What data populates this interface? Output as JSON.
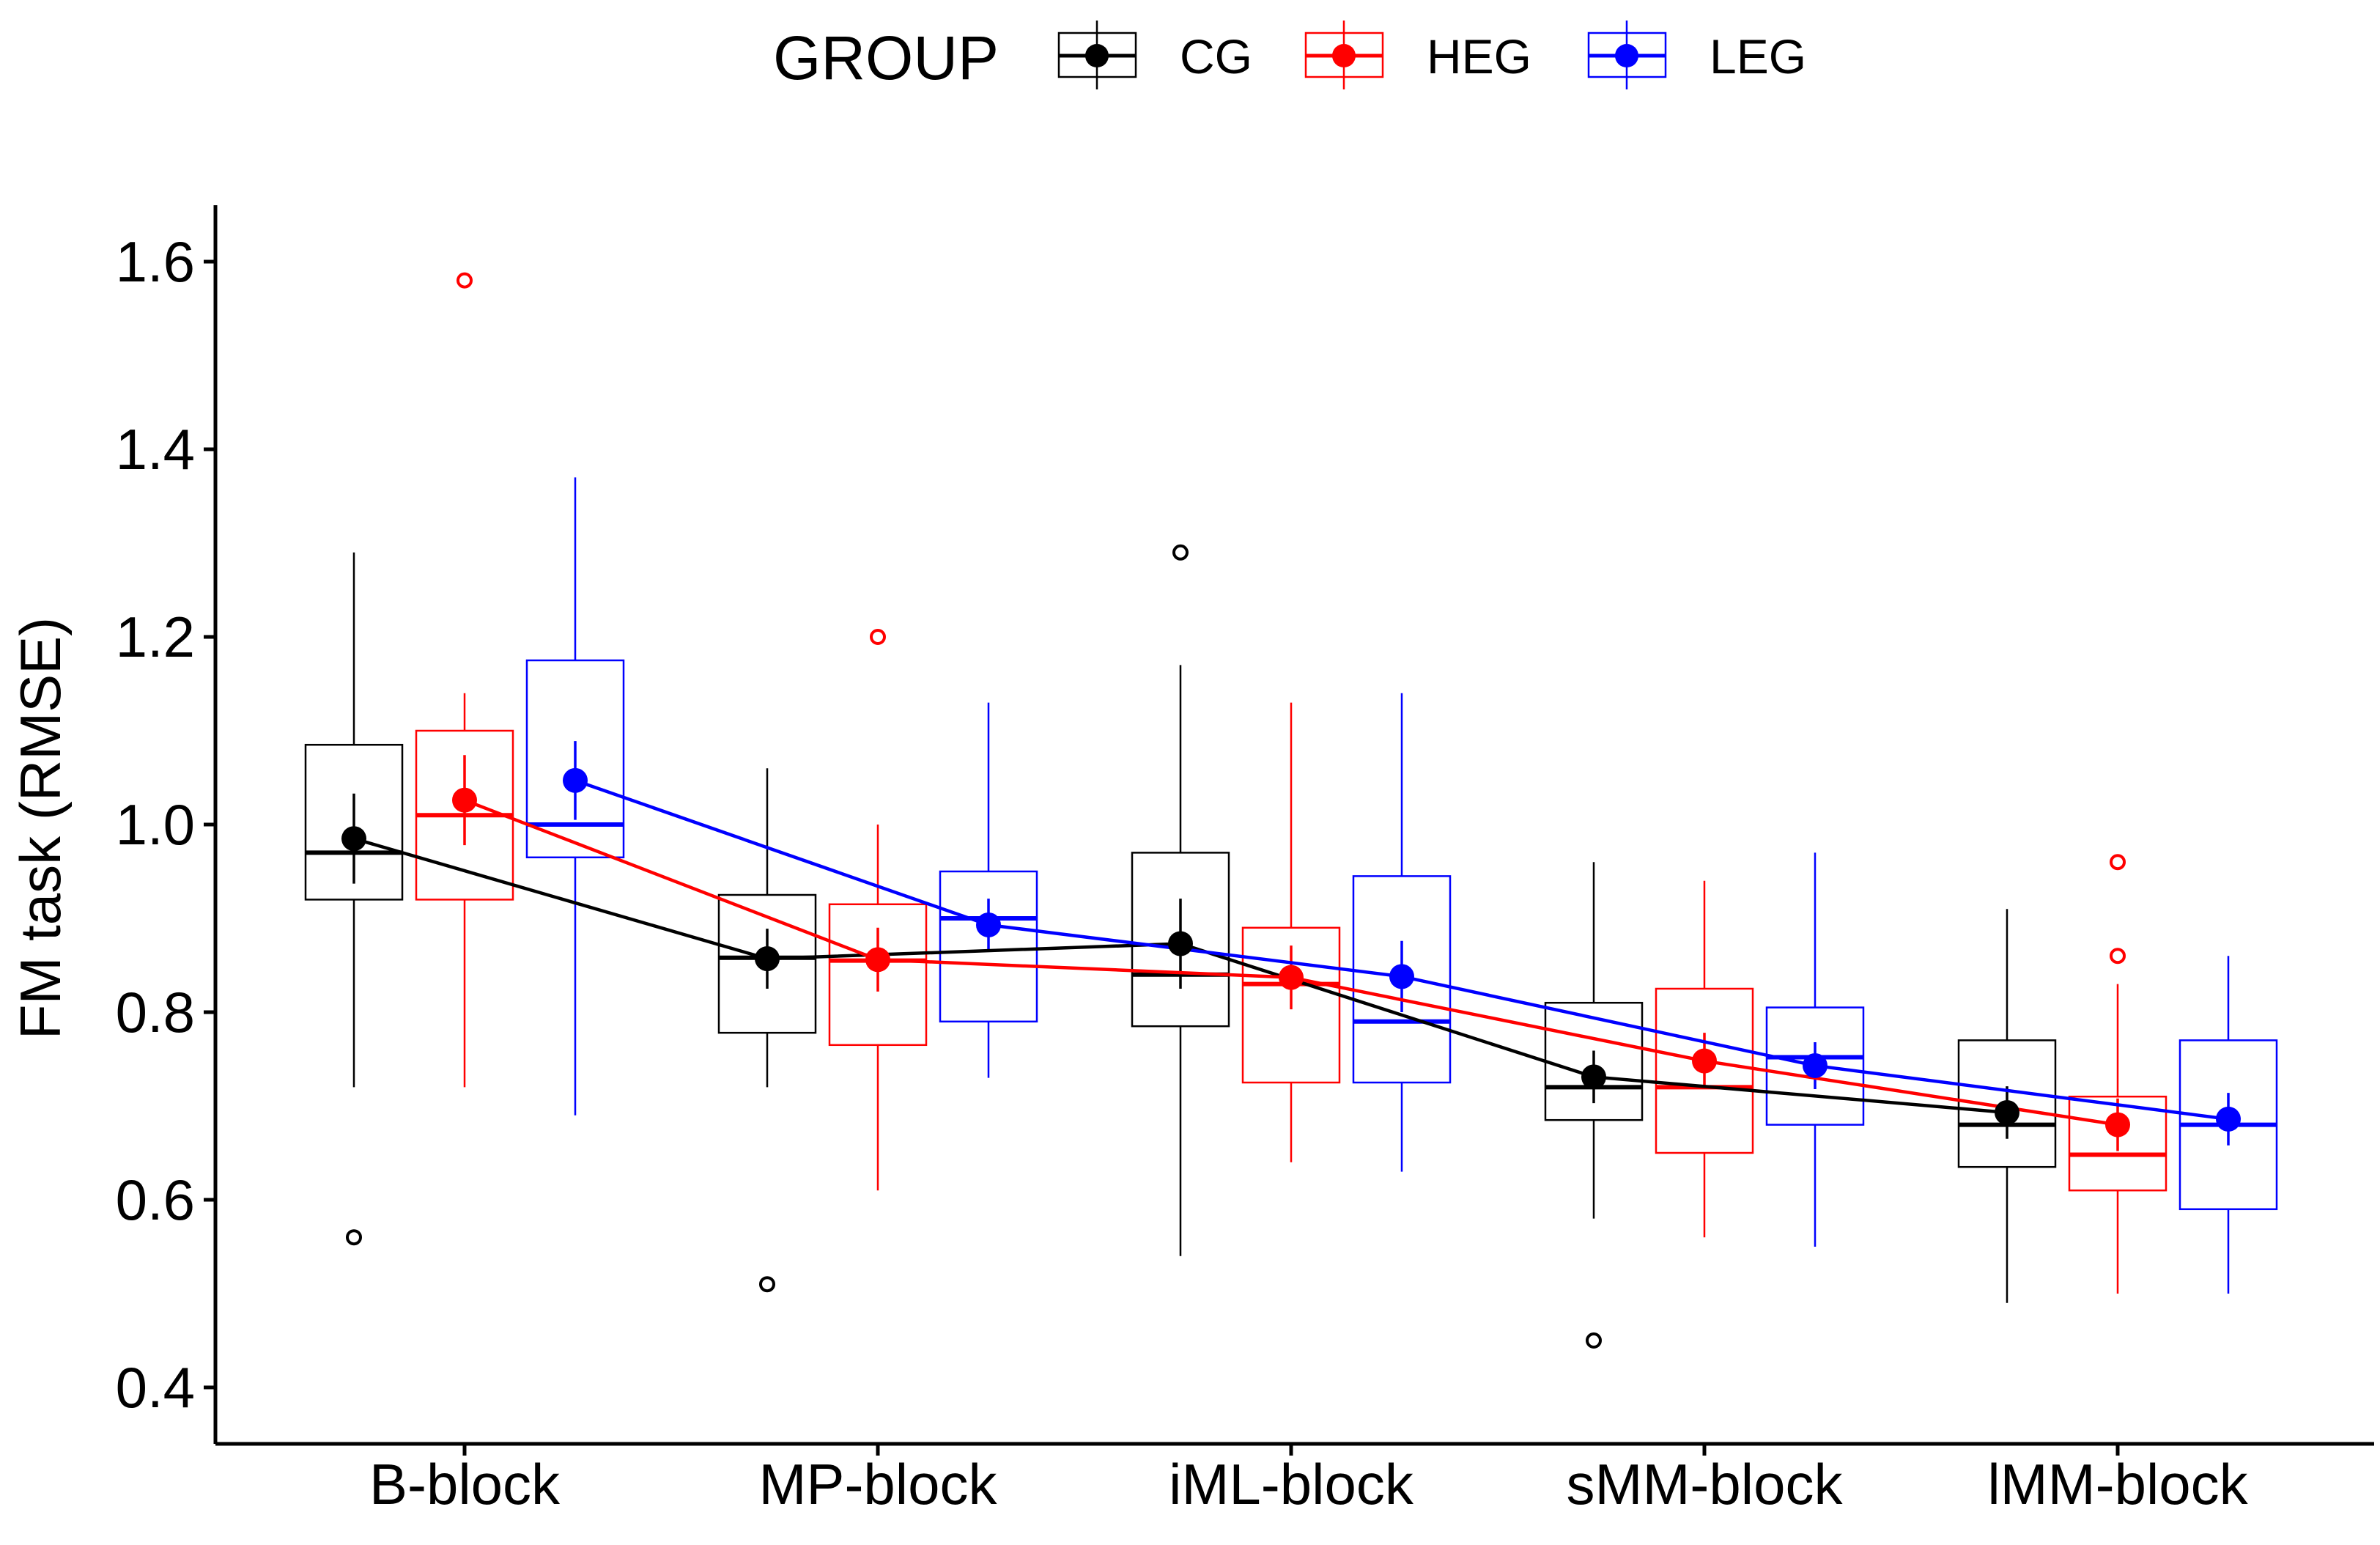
{
  "chart_data": {
    "type": "box",
    "title": "",
    "xlabel": "",
    "ylabel": "FM task (RMSE)",
    "ylim": [
      0.35,
      1.66
    ],
    "yticks": [
      0.4,
      0.6,
      0.8,
      1.0,
      1.2,
      1.4,
      1.6
    ],
    "ytick_labels": [
      "0.4",
      "0.6",
      "0.8",
      "1.0",
      "1.2",
      "1.4",
      "1.6"
    ],
    "categories": [
      "B-block",
      "MP-block",
      "iML-block",
      "sMM-block",
      "lMM-block"
    ],
    "legend": {
      "title": "GROUP",
      "position": "top"
    },
    "series": [
      {
        "name": "CG",
        "color": "#000000",
        "boxes": [
          {
            "whisker_low": 0.72,
            "q1": 0.92,
            "median": 0.97,
            "q3": 1.085,
            "whisker_high": 1.29,
            "mean": 0.985,
            "se": 0.048,
            "outliers": [
              0.56
            ]
          },
          {
            "whisker_low": 0.72,
            "q1": 0.778,
            "median": 0.858,
            "q3": 0.925,
            "whisker_high": 1.06,
            "mean": 0.857,
            "se": 0.032,
            "outliers": [
              0.51
            ]
          },
          {
            "whisker_low": 0.54,
            "q1": 0.785,
            "median": 0.84,
            "q3": 0.97,
            "whisker_high": 1.17,
            "mean": 0.873,
            "se": 0.048,
            "outliers": [
              1.29
            ]
          },
          {
            "whisker_low": 0.58,
            "q1": 0.685,
            "median": 0.72,
            "q3": 0.81,
            "whisker_high": 0.96,
            "mean": 0.731,
            "se": 0.028,
            "outliers": [
              0.45
            ]
          },
          {
            "whisker_low": 0.49,
            "q1": 0.635,
            "median": 0.68,
            "q3": 0.77,
            "whisker_high": 0.91,
            "mean": 0.693,
            "se": 0.028,
            "outliers": []
          }
        ]
      },
      {
        "name": "HEG",
        "color": "#ff0000",
        "boxes": [
          {
            "whisker_low": 0.72,
            "q1": 0.92,
            "median": 1.01,
            "q3": 1.1,
            "whisker_high": 1.14,
            "mean": 1.026,
            "se": 0.048,
            "outliers": [
              1.58
            ]
          },
          {
            "whisker_low": 0.61,
            "q1": 0.765,
            "median": 0.855,
            "q3": 0.915,
            "whisker_high": 1.0,
            "mean": 0.856,
            "se": 0.034,
            "outliers": [
              1.2
            ]
          },
          {
            "whisker_low": 0.64,
            "q1": 0.725,
            "median": 0.83,
            "q3": 0.89,
            "whisker_high": 1.13,
            "mean": 0.837,
            "se": 0.034,
            "outliers": []
          },
          {
            "whisker_low": 0.56,
            "q1": 0.65,
            "median": 0.72,
            "q3": 0.825,
            "whisker_high": 0.94,
            "mean": 0.748,
            "se": 0.03,
            "outliers": []
          },
          {
            "whisker_low": 0.5,
            "q1": 0.61,
            "median": 0.648,
            "q3": 0.71,
            "whisker_high": 0.83,
            "mean": 0.68,
            "se": 0.028,
            "outliers": [
              0.86,
              0.96
            ]
          }
        ]
      },
      {
        "name": "LEG",
        "color": "#0000ff",
        "boxes": [
          {
            "whisker_low": 0.69,
            "q1": 0.965,
            "median": 1.0,
            "q3": 1.175,
            "whisker_high": 1.37,
            "mean": 1.047,
            "se": 0.042,
            "outliers": []
          },
          {
            "whisker_low": 0.73,
            "q1": 0.79,
            "median": 0.9,
            "q3": 0.95,
            "whisker_high": 1.13,
            "mean": 0.893,
            "se": 0.028,
            "outliers": []
          },
          {
            "whisker_low": 0.63,
            "q1": 0.725,
            "median": 0.79,
            "q3": 0.945,
            "whisker_high": 1.14,
            "mean": 0.838,
            "se": 0.038,
            "outliers": []
          },
          {
            "whisker_low": 0.55,
            "q1": 0.68,
            "median": 0.752,
            "q3": 0.805,
            "whisker_high": 0.97,
            "mean": 0.743,
            "se": 0.025,
            "outliers": []
          },
          {
            "whisker_low": 0.5,
            "q1": 0.59,
            "median": 0.68,
            "q3": 0.77,
            "whisker_high": 0.86,
            "mean": 0.686,
            "se": 0.028,
            "outliers": []
          }
        ]
      }
    ]
  }
}
